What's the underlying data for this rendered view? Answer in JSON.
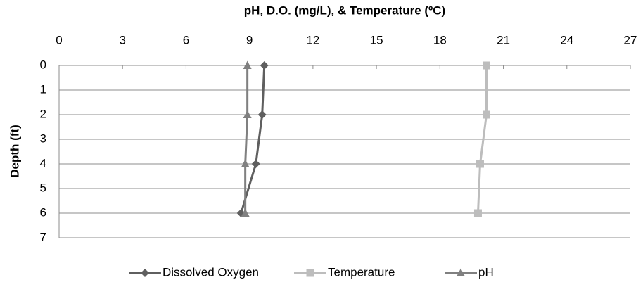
{
  "chart_data": {
    "type": "line",
    "title": "pH, D.O. (mg/L), & Temperature (ºC)",
    "y_label": "Depth (ft)",
    "y": [
      0,
      2,
      4,
      6
    ],
    "series": [
      {
        "name": "Dissolved Oxygen",
        "color": "#5f5f5f",
        "marker": "diamond",
        "values": [
          9.7,
          9.6,
          9.3,
          8.6
        ]
      },
      {
        "name": "Temperature",
        "color": "#bdbdbd",
        "marker": "square",
        "values": [
          20.2,
          20.2,
          19.9,
          19.8
        ]
      },
      {
        "name": "pH",
        "color": "#808080",
        "marker": "triangle",
        "values": [
          8.9,
          8.9,
          8.8,
          8.8
        ]
      }
    ],
    "xlim": [
      0,
      27
    ],
    "xticks": [
      0,
      3,
      6,
      9,
      12,
      15,
      18,
      21,
      24,
      27
    ],
    "ylim": [
      0,
      7
    ],
    "yticks": [
      0,
      1,
      2,
      3,
      4,
      5,
      6,
      7
    ],
    "y_reversed": true,
    "grid": true,
    "legend": "bottom"
  }
}
